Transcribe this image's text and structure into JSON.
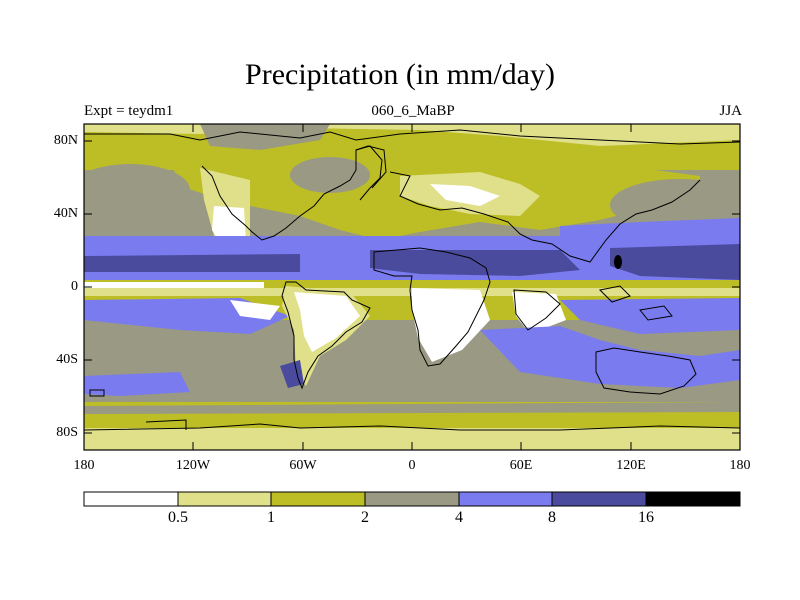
{
  "title": "Precipitation (in mm/day)",
  "left_label": "Expt = teydm1",
  "center_label": "060_6_MaBP",
  "right_label": "JJA",
  "lat_ticks": [
    "80N",
    "40N",
    "0",
    "40S",
    "80S"
  ],
  "lon_ticks": [
    "180",
    "120W",
    "60W",
    "0",
    "60E",
    "120E",
    "180"
  ],
  "colorbar": {
    "labels": [
      "0.5",
      "1",
      "2",
      "4",
      "8",
      "16"
    ],
    "colors": [
      "#ffffff",
      "#e0e08a",
      "#bdbd26",
      "#999984",
      "#7b7bf0",
      "#4b4b9e",
      "#000000"
    ]
  },
  "map_colors": {
    "white": "#ffffff",
    "pale": "#e0e08a",
    "olive": "#bdbd26",
    "gray": "#999984",
    "blue": "#7b7bf0",
    "navy": "#4b4b9e",
    "black": "#000000"
  }
}
